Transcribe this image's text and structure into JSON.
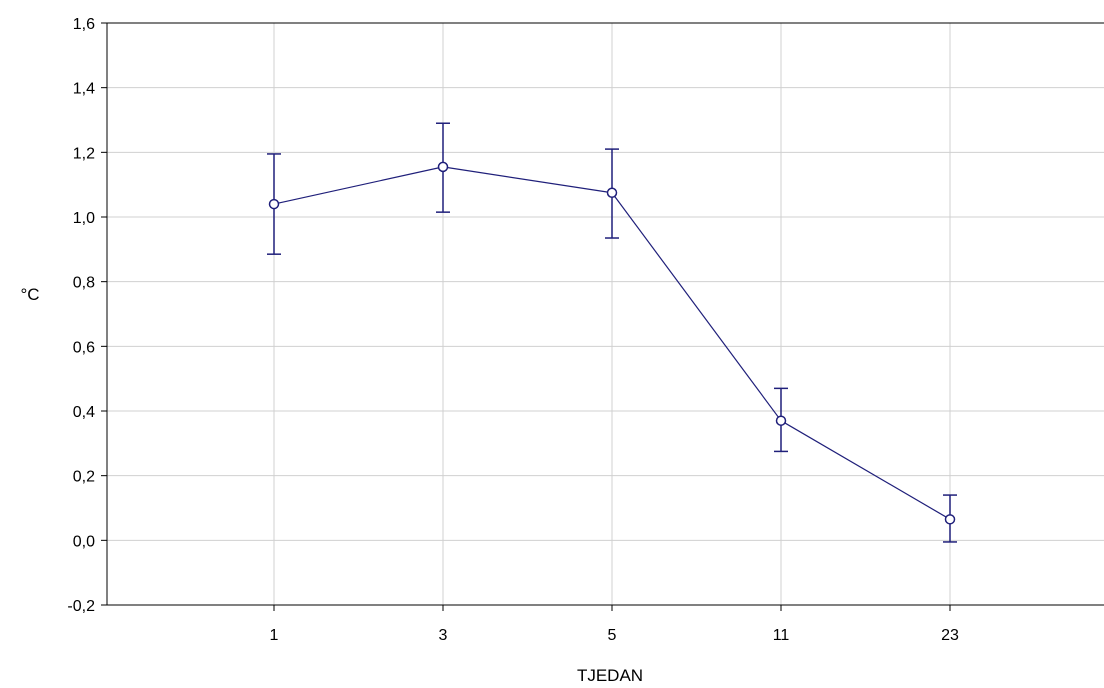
{
  "chart_data": {
    "type": "line",
    "title": "",
    "xlabel": "TJEDAN",
    "ylabel": "°C",
    "categories": [
      "1",
      "3",
      "5",
      "11",
      "23"
    ],
    "series": [
      {
        "values": [
          1.04,
          1.155,
          1.075,
          0.37,
          0.065
        ],
        "error_low": [
          0.885,
          1.015,
          0.935,
          0.275,
          -0.005
        ],
        "error_high": [
          1.195,
          1.29,
          1.21,
          0.47,
          0.14
        ]
      }
    ],
    "ylim": [
      -0.2,
      1.6
    ],
    "yticks": [
      "-0,2",
      "0,0",
      "0,2",
      "0,4",
      "0,6",
      "0,8",
      "1,0",
      "1,2",
      "1,4",
      "1,6"
    ],
    "grid": true,
    "colors": {
      "series": "#1f1f7a",
      "grid": "#d0d0d0",
      "axis": "#000000"
    }
  }
}
